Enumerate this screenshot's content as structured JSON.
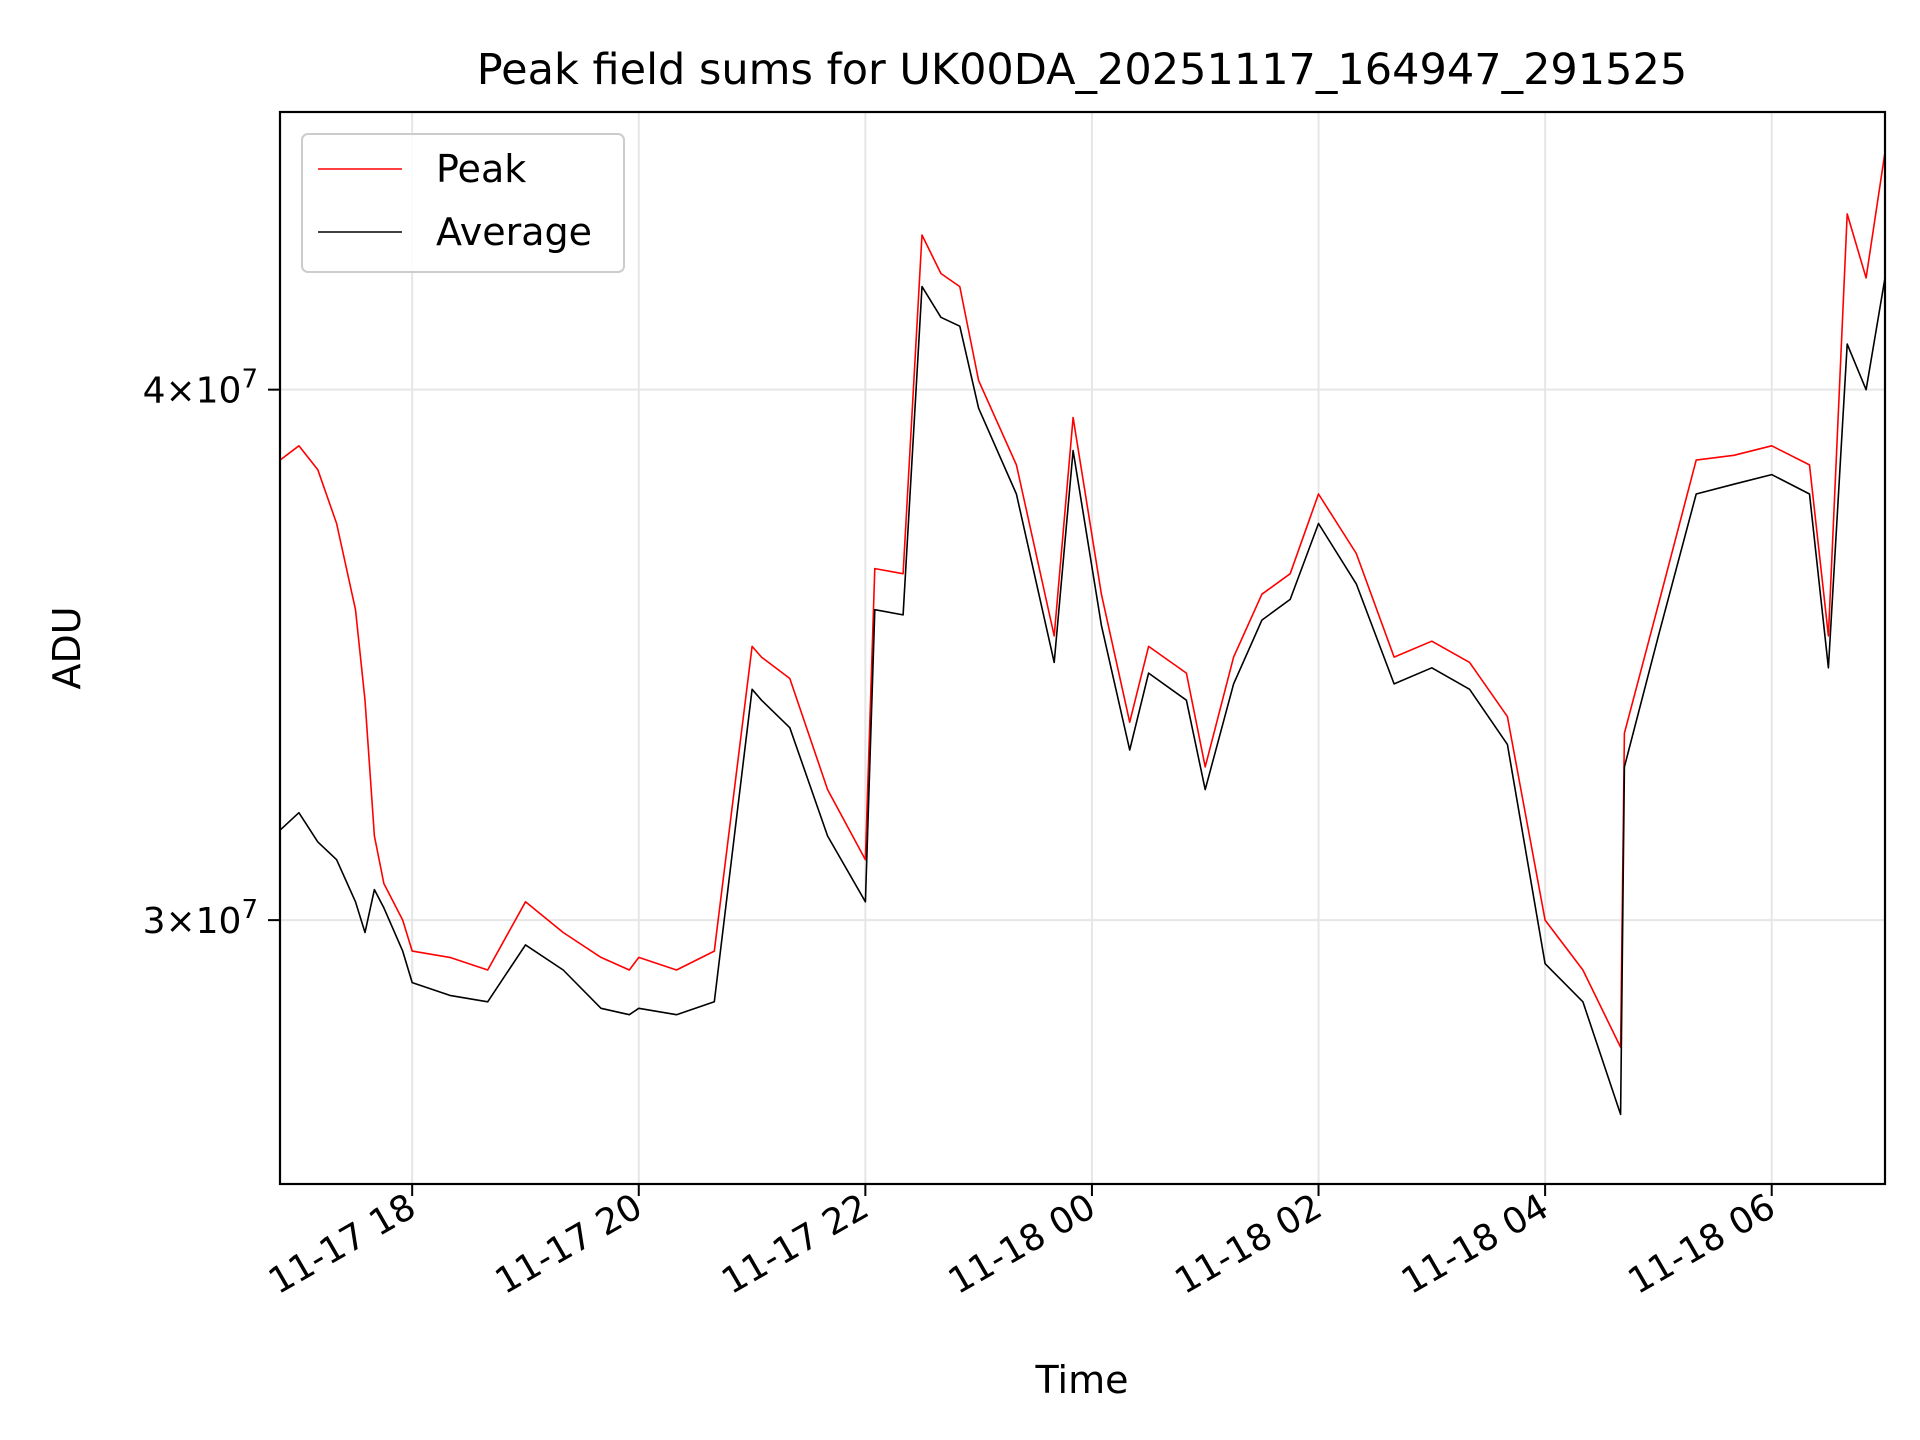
{
  "chart_data": {
    "type": "line",
    "title": "Peak field sums for UK00DA_20251117_164947_291525",
    "xlabel": "Time",
    "ylabel": "ADU",
    "y_scale": "log",
    "ylim": [
      26000000,
      46500000
    ],
    "xlim": [
      "2025-11-17 16:50",
      "2025-11-18 07:00"
    ],
    "x_ticks": [
      "2025-11-17 18:00",
      "2025-11-17 20:00",
      "2025-11-17 22:00",
      "2025-11-18 00:00",
      "2025-11-18 02:00",
      "2025-11-18 04:00",
      "2025-11-18 06:00"
    ],
    "x_tick_labels": [
      "11-17 18",
      "11-17 20",
      "11-17 22",
      "11-18 00",
      "11-18 02",
      "11-18 04",
      "11-18 06"
    ],
    "y_ticks": [
      30000000,
      40000000
    ],
    "y_tick_labels": [
      {
        "mantissa": "3",
        "times": "×10",
        "exponent": "7"
      },
      {
        "mantissa": "4",
        "times": "×10",
        "exponent": "7"
      }
    ],
    "grid": true,
    "legend_position": "top-left",
    "series": [
      {
        "name": "Peak",
        "color": "#ff0000",
        "x": [
          "2025-11-17 16:50",
          "2025-11-17 17:00",
          "2025-11-17 17:10",
          "2025-11-17 17:20",
          "2025-11-17 17:30",
          "2025-11-17 17:35",
          "2025-11-17 17:40",
          "2025-11-17 17:45",
          "2025-11-17 17:55",
          "2025-11-17 18:00",
          "2025-11-17 18:20",
          "2025-11-17 18:40",
          "2025-11-17 19:00",
          "2025-11-17 19:20",
          "2025-11-17 19:40",
          "2025-11-17 19:55",
          "2025-11-17 20:00",
          "2025-11-17 20:20",
          "2025-11-17 20:40",
          "2025-11-17 21:00",
          "2025-11-17 21:05",
          "2025-11-17 21:20",
          "2025-11-17 21:40",
          "2025-11-17 22:00",
          "2025-11-17 22:05",
          "2025-11-17 22:20",
          "2025-11-17 22:30",
          "2025-11-17 22:40",
          "2025-11-17 22:50",
          "2025-11-17 23:00",
          "2025-11-17 23:20",
          "2025-11-17 23:40",
          "2025-11-17 23:50",
          "2025-11-18 00:05",
          "2025-11-18 00:20",
          "2025-11-18 00:30",
          "2025-11-18 00:50",
          "2025-11-18 01:00",
          "2025-11-18 01:15",
          "2025-11-18 01:30",
          "2025-11-18 01:45",
          "2025-11-18 02:00",
          "2025-11-18 02:20",
          "2025-11-18 02:40",
          "2025-11-18 03:00",
          "2025-11-18 03:20",
          "2025-11-18 03:40",
          "2025-11-18 04:00",
          "2025-11-18 04:20",
          "2025-11-18 04:40",
          "2025-11-18 04:42",
          "2025-11-18 05:00",
          "2025-11-18 05:20",
          "2025-11-18 05:40",
          "2025-11-18 06:00",
          "2025-11-18 06:20",
          "2025-11-18 06:30",
          "2025-11-18 06:40",
          "2025-11-18 06:50",
          "2025-11-18 07:00"
        ],
        "values": [
          38500000,
          38800000,
          38300000,
          37200000,
          35500000,
          33800000,
          31400000,
          30600000,
          30000000,
          29500000,
          29400000,
          29200000,
          30300000,
          29800000,
          29400000,
          29200000,
          29400000,
          29200000,
          29500000,
          34800000,
          34600000,
          34200000,
          32200000,
          31000000,
          36300000,
          36200000,
          43500000,
          42600000,
          42300000,
          40200000,
          38400000,
          35000000,
          39400000,
          35800000,
          33400000,
          34800000,
          34300000,
          32600000,
          34600000,
          35800000,
          36200000,
          37800000,
          36600000,
          34600000,
          34900000,
          34500000,
          33500000,
          30000000,
          29200000,
          28000000,
          33200000,
          35600000,
          38500000,
          38600000,
          38800000,
          38400000,
          35000000,
          44000000,
          42500000,
          45500000
        ]
      },
      {
        "name": "Average",
        "color": "#000000",
        "x": [
          "2025-11-17 16:50",
          "2025-11-17 17:00",
          "2025-11-17 17:10",
          "2025-11-17 17:20",
          "2025-11-17 17:30",
          "2025-11-17 17:35",
          "2025-11-17 17:40",
          "2025-11-17 17:45",
          "2025-11-17 17:55",
          "2025-11-17 18:00",
          "2025-11-17 18:20",
          "2025-11-17 18:40",
          "2025-11-17 19:00",
          "2025-11-17 19:20",
          "2025-11-17 19:40",
          "2025-11-17 19:55",
          "2025-11-17 20:00",
          "2025-11-17 20:20",
          "2025-11-17 20:40",
          "2025-11-17 21:00",
          "2025-11-17 21:05",
          "2025-11-17 21:20",
          "2025-11-17 21:40",
          "2025-11-17 22:00",
          "2025-11-17 22:05",
          "2025-11-17 22:20",
          "2025-11-17 22:30",
          "2025-11-17 22:40",
          "2025-11-17 22:50",
          "2025-11-17 23:00",
          "2025-11-17 23:20",
          "2025-11-17 23:40",
          "2025-11-17 23:50",
          "2025-11-18 00:05",
          "2025-11-18 00:20",
          "2025-11-18 00:30",
          "2025-11-18 00:50",
          "2025-11-18 01:00",
          "2025-11-18 01:15",
          "2025-11-18 01:30",
          "2025-11-18 01:45",
          "2025-11-18 02:00",
          "2025-11-18 02:20",
          "2025-11-18 02:40",
          "2025-11-18 03:00",
          "2025-11-18 03:20",
          "2025-11-18 03:40",
          "2025-11-18 04:00",
          "2025-11-18 04:20",
          "2025-11-18 04:40",
          "2025-11-18 04:42",
          "2025-11-18 05:00",
          "2025-11-18 05:20",
          "2025-11-18 05:40",
          "2025-11-18 06:00",
          "2025-11-18 06:20",
          "2025-11-18 06:30",
          "2025-11-18 06:40",
          "2025-11-18 06:50",
          "2025-11-18 07:00"
        ],
        "values": [
          31500000,
          31800000,
          31300000,
          31000000,
          30300000,
          29800000,
          30500000,
          30200000,
          29500000,
          29000000,
          28800000,
          28700000,
          29600000,
          29200000,
          28600000,
          28500000,
          28600000,
          28500000,
          28700000,
          34000000,
          33800000,
          33300000,
          31400000,
          30300000,
          35500000,
          35400000,
          42300000,
          41600000,
          41400000,
          39600000,
          37800000,
          34500000,
          38700000,
          35200000,
          32900000,
          34300000,
          33800000,
          32200000,
          34100000,
          35300000,
          35700000,
          37200000,
          36000000,
          34100000,
          34400000,
          34000000,
          33000000,
          29300000,
          28700000,
          27000000,
          32600000,
          35000000,
          37800000,
          38000000,
          38200000,
          37800000,
          34400000,
          41000000,
          40000000,
          42500000
        ]
      }
    ]
  }
}
